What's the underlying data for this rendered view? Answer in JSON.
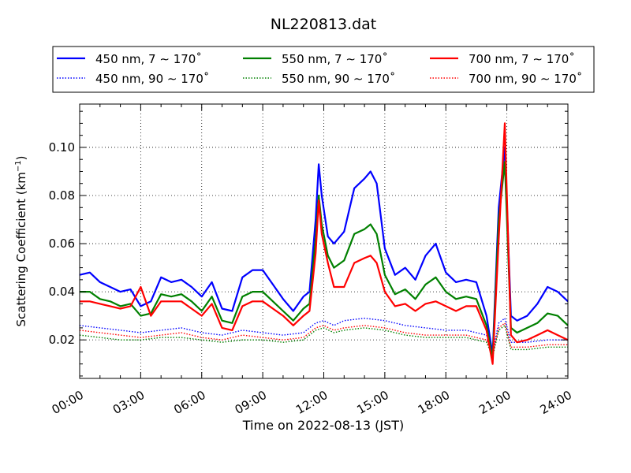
{
  "chart_data": {
    "type": "line",
    "title": "NL220813.dat",
    "xlabel": "Time on 2022-08-13 (JST)",
    "ylabel_main": "Scattering Coefficient (km",
    "ylabel_sup": "−1",
    "ylabel_end": ")",
    "xlim_hours": [
      0,
      24
    ],
    "ylim": [
      0.004,
      0.118
    ],
    "x_ticks": [
      {
        "h": 0,
        "label": "00:00"
      },
      {
        "h": 3,
        "label": "03:00"
      },
      {
        "h": 6,
        "label": "06:00"
      },
      {
        "h": 9,
        "label": "09:00"
      },
      {
        "h": 12,
        "label": "12:00"
      },
      {
        "h": 15,
        "label": "15:00"
      },
      {
        "h": 18,
        "label": "18:00"
      },
      {
        "h": 21,
        "label": "21:00"
      },
      {
        "h": 24,
        "label": "24:00"
      }
    ],
    "y_ticks": [
      {
        "v": 0.02,
        "label": "0.02"
      },
      {
        "v": 0.04,
        "label": "0.04"
      },
      {
        "v": 0.06,
        "label": "0.06"
      },
      {
        "v": 0.08,
        "label": "0.08"
      },
      {
        "v": 0.1,
        "label": "0.10"
      }
    ],
    "grid": true,
    "legend_position": "top",
    "series": [
      {
        "name": "450 nm, 7 ∼ 170˚",
        "color": "#0000ff",
        "style": "solid",
        "x": [
          0,
          0.5,
          1,
          1.5,
          2,
          2.5,
          3,
          3.5,
          4,
          4.5,
          5,
          5.5,
          6,
          6.5,
          7,
          7.5,
          8,
          8.5,
          9,
          9.5,
          10,
          10.5,
          11,
          11.3,
          11.6,
          11.75,
          11.9,
          12.2,
          12.5,
          13,
          13.5,
          14,
          14.3,
          14.6,
          15,
          15.5,
          16,
          16.5,
          17,
          17.5,
          18,
          18.5,
          19,
          19.5,
          20,
          20.3,
          20.6,
          20.9,
          21.2,
          21.5,
          22,
          22.5,
          23,
          23.5,
          24
        ],
        "y": [
          0.047,
          0.048,
          0.044,
          0.042,
          0.04,
          0.041,
          0.034,
          0.036,
          0.046,
          0.044,
          0.045,
          0.042,
          0.038,
          0.044,
          0.033,
          0.032,
          0.046,
          0.049,
          0.049,
          0.043,
          0.037,
          0.032,
          0.038,
          0.04,
          0.07,
          0.093,
          0.08,
          0.063,
          0.06,
          0.065,
          0.083,
          0.087,
          0.09,
          0.085,
          0.058,
          0.047,
          0.05,
          0.045,
          0.055,
          0.06,
          0.048,
          0.044,
          0.045,
          0.044,
          0.03,
          0.014,
          0.075,
          0.1,
          0.03,
          0.028,
          0.03,
          0.035,
          0.042,
          0.04,
          0.036
        ]
      },
      {
        "name": "550 nm, 7 ∼ 170˚",
        "color": "#008000",
        "style": "solid",
        "x": [
          0,
          0.5,
          1,
          1.5,
          2,
          2.5,
          3,
          3.5,
          4,
          4.5,
          5,
          5.5,
          6,
          6.5,
          7,
          7.5,
          8,
          8.5,
          9,
          9.5,
          10,
          10.5,
          11,
          11.3,
          11.6,
          11.75,
          11.9,
          12.2,
          12.5,
          13,
          13.5,
          14,
          14.3,
          14.6,
          15,
          15.5,
          16,
          16.5,
          17,
          17.5,
          18,
          18.5,
          19,
          19.5,
          20,
          20.3,
          20.6,
          20.9,
          21.2,
          21.5,
          22,
          22.5,
          23,
          23.5,
          24
        ],
        "y": [
          0.04,
          0.04,
          0.037,
          0.036,
          0.034,
          0.035,
          0.03,
          0.031,
          0.039,
          0.038,
          0.039,
          0.036,
          0.032,
          0.038,
          0.028,
          0.027,
          0.038,
          0.04,
          0.04,
          0.036,
          0.032,
          0.028,
          0.033,
          0.035,
          0.062,
          0.08,
          0.068,
          0.055,
          0.05,
          0.053,
          0.064,
          0.066,
          0.068,
          0.064,
          0.047,
          0.039,
          0.041,
          0.037,
          0.043,
          0.046,
          0.04,
          0.037,
          0.038,
          0.037,
          0.026,
          0.012,
          0.07,
          0.094,
          0.025,
          0.023,
          0.025,
          0.027,
          0.031,
          0.03,
          0.026
        ]
      },
      {
        "name": "700 nm, 7 ∼ 170˚",
        "color": "#ff0000",
        "style": "solid",
        "x": [
          0,
          0.5,
          1,
          1.5,
          2,
          2.5,
          3,
          3.5,
          4,
          4.5,
          5,
          5.5,
          6,
          6.5,
          7,
          7.5,
          8,
          8.5,
          9,
          9.5,
          10,
          10.5,
          11,
          11.3,
          11.6,
          11.75,
          11.9,
          12.2,
          12.5,
          13,
          13.5,
          14,
          14.3,
          14.6,
          15,
          15.5,
          16,
          16.5,
          17,
          17.5,
          18,
          18.5,
          19,
          19.5,
          20,
          20.3,
          20.6,
          20.9,
          21.2,
          21.5,
          22,
          22.5,
          23,
          23.5,
          24
        ],
        "y": [
          0.036,
          0.036,
          0.035,
          0.034,
          0.033,
          0.034,
          0.042,
          0.03,
          0.036,
          0.036,
          0.036,
          0.033,
          0.03,
          0.035,
          0.025,
          0.024,
          0.034,
          0.036,
          0.036,
          0.033,
          0.03,
          0.026,
          0.03,
          0.032,
          0.056,
          0.078,
          0.064,
          0.052,
          0.042,
          0.042,
          0.052,
          0.054,
          0.055,
          0.052,
          0.04,
          0.034,
          0.035,
          0.032,
          0.035,
          0.036,
          0.034,
          0.032,
          0.034,
          0.034,
          0.024,
          0.01,
          0.062,
          0.11,
          0.022,
          0.019,
          0.02,
          0.022,
          0.024,
          0.022,
          0.02
        ]
      },
      {
        "name": "450 nm, 90 ∼ 170˚",
        "color": "#0000ff",
        "style": "dotted",
        "x": [
          0,
          1,
          2,
          3,
          4,
          5,
          6,
          7,
          8,
          9,
          10,
          11,
          11.6,
          12,
          12.5,
          13,
          14,
          15,
          16,
          17,
          18,
          19,
          20,
          20.3,
          20.6,
          20.9,
          21.2,
          22,
          23,
          24
        ],
        "y": [
          0.026,
          0.025,
          0.024,
          0.023,
          0.024,
          0.025,
          0.023,
          0.022,
          0.024,
          0.023,
          0.022,
          0.023,
          0.027,
          0.028,
          0.026,
          0.028,
          0.029,
          0.028,
          0.026,
          0.025,
          0.024,
          0.024,
          0.022,
          0.015,
          0.027,
          0.029,
          0.019,
          0.019,
          0.02,
          0.02
        ]
      },
      {
        "name": "550 nm, 90 ∼ 170˚",
        "color": "#008000",
        "style": "dotted",
        "x": [
          0,
          1,
          2,
          3,
          4,
          5,
          6,
          7,
          8,
          9,
          10,
          11,
          11.6,
          12,
          12.5,
          13,
          14,
          15,
          16,
          17,
          18,
          19,
          20,
          20.3,
          20.6,
          20.9,
          21.2,
          22,
          23,
          24
        ],
        "y": [
          0.022,
          0.021,
          0.02,
          0.02,
          0.021,
          0.021,
          0.02,
          0.019,
          0.02,
          0.02,
          0.019,
          0.02,
          0.024,
          0.025,
          0.023,
          0.024,
          0.025,
          0.024,
          0.022,
          0.021,
          0.021,
          0.021,
          0.019,
          0.013,
          0.024,
          0.026,
          0.016,
          0.016,
          0.017,
          0.017
        ]
      },
      {
        "name": "700 nm, 90 ∼ 170˚",
        "color": "#ff0000",
        "style": "dotted",
        "x": [
          0,
          1,
          2,
          3,
          4,
          5,
          6,
          7,
          8,
          9,
          10,
          11,
          11.6,
          12,
          12.5,
          13,
          14,
          15,
          16,
          17,
          18,
          19,
          20,
          20.3,
          20.6,
          20.9,
          21.2,
          22,
          23,
          24
        ],
        "y": [
          0.024,
          0.023,
          0.022,
          0.021,
          0.022,
          0.023,
          0.021,
          0.02,
          0.022,
          0.021,
          0.02,
          0.021,
          0.025,
          0.026,
          0.024,
          0.025,
          0.026,
          0.025,
          0.023,
          0.022,
          0.022,
          0.022,
          0.02,
          0.014,
          0.025,
          0.027,
          0.017,
          0.017,
          0.018,
          0.018
        ]
      }
    ]
  }
}
